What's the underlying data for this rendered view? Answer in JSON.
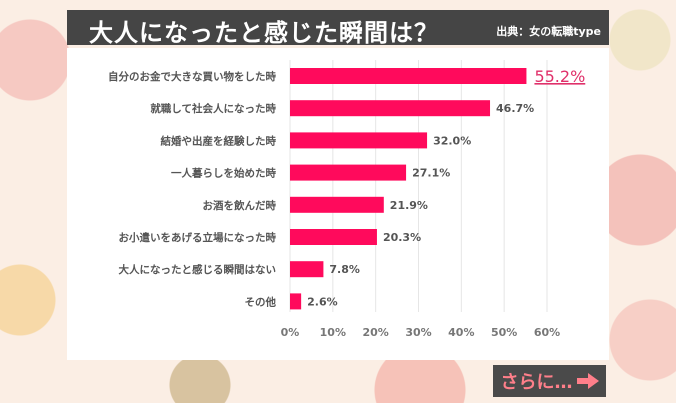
{
  "header": {
    "title": "大人になったと感じた瞬間は？",
    "source": "出典：女の転職type"
  },
  "chart_data": {
    "type": "bar",
    "orientation": "horizontal",
    "title": "大人になったと感じた瞬間は？",
    "categories": [
      "自分のお金で大きな買い物をした時",
      "就職して社会人になった時",
      "結婚や出産を経験した時",
      "一人暮らしを始めた時",
      "お酒を飲んだ時",
      "お小遣いをあげる立場になった時",
      "大人になったと感じる瞬間はない",
      "その他"
    ],
    "values": [
      55.2,
      46.7,
      32.0,
      27.1,
      21.9,
      20.3,
      7.8,
      2.6
    ],
    "data_labels": [
      "55.2%",
      "46.7%",
      "32.0%",
      "27.1%",
      "21.9%",
      "20.3%",
      "7.8%",
      "2.6%"
    ],
    "xlim": [
      0,
      60
    ],
    "ticks": [
      "0%",
      "10%",
      "20%",
      "30%",
      "40%",
      "50%",
      "60%"
    ],
    "grid": true,
    "colors": {
      "bar": "#ff0a5c",
      "highlight_label": "#e0306a",
      "label": "#555555"
    }
  },
  "more_button": {
    "label": "さらに…",
    "icon": "arrow-right-icon"
  }
}
